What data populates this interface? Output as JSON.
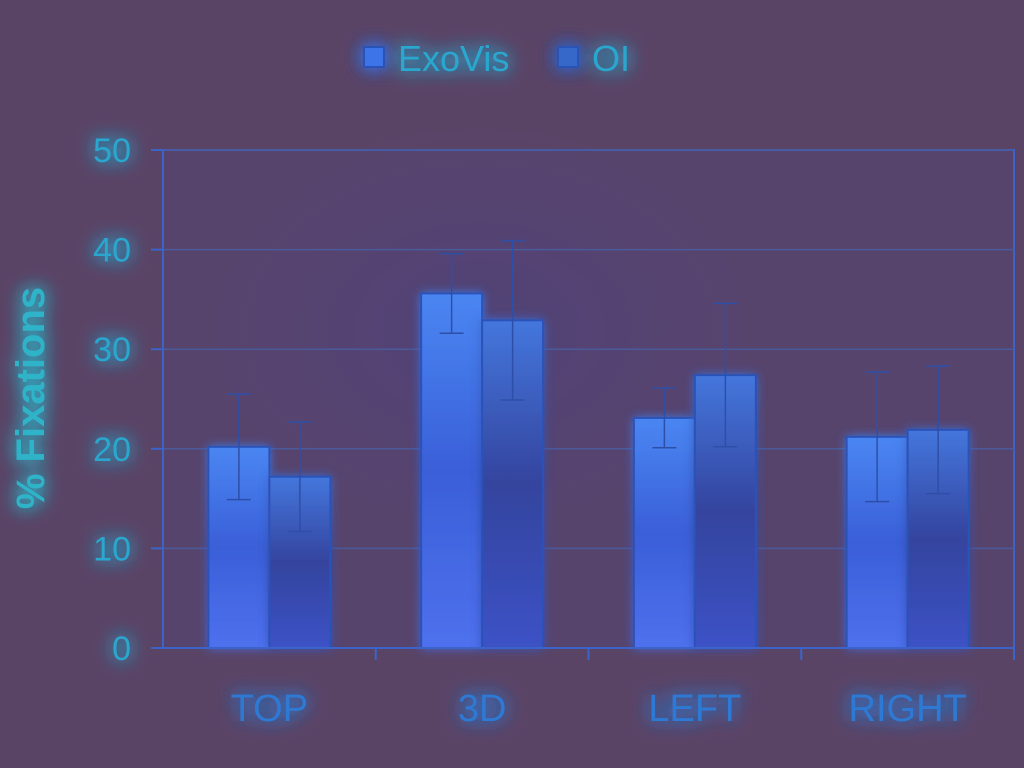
{
  "chart_data": {
    "type": "bar",
    "categories": [
      "TOP",
      "3D",
      "LEFT",
      "RIGHT"
    ],
    "series": [
      {
        "name": "ExoVis",
        "values": [
          20.2,
          35.6,
          23.1,
          21.2
        ],
        "error": [
          5.3,
          4.0,
          3.0,
          6.5
        ]
      },
      {
        "name": "OI",
        "values": [
          17.2,
          32.9,
          27.4,
          21.9
        ],
        "error": [
          5.5,
          8.0,
          7.2,
          6.4
        ]
      }
    ],
    "title": "",
    "xlabel": "",
    "ylabel": "% Fixations",
    "ylim": [
      0,
      50
    ],
    "yticks": [
      0,
      10,
      20,
      30,
      40,
      50
    ],
    "grid": true,
    "legend": "top-center",
    "colors": {
      "exovis": "#3d74e8",
      "oi": "#3567c8",
      "bar_edge": "#2c52b8",
      "axis": "#3b63c9",
      "grid": "#4a5a9a",
      "glow": "#44d8ff"
    }
  }
}
